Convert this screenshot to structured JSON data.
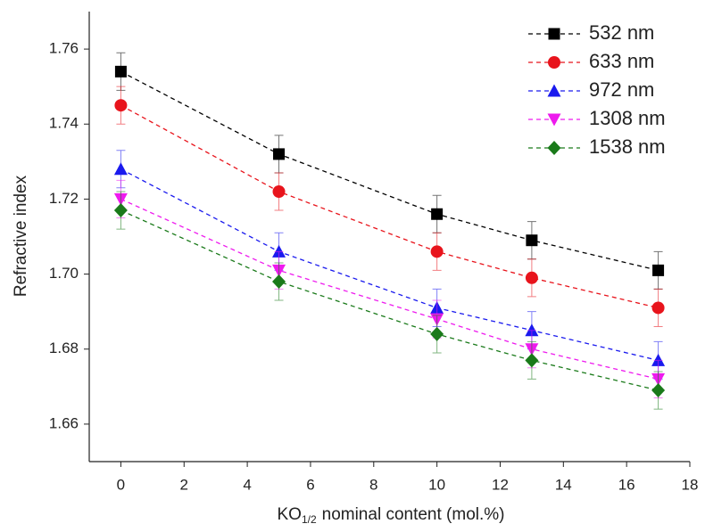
{
  "chart_data": {
    "type": "line",
    "xlabel": [
      "KO",
      "1/2",
      "nominal content (mol.%)"
    ],
    "ylabel": "Refractive index",
    "x": [
      0,
      5,
      10,
      13,
      17
    ],
    "series": [
      {
        "name": "532 nm",
        "color": "#000000",
        "marker": "square",
        "values": [
          1.754,
          1.732,
          1.716,
          1.709,
          1.701
        ],
        "errors": [
          0.005,
          0.005,
          0.005,
          0.005,
          0.005
        ]
      },
      {
        "name": "633 nm",
        "color": "#e8141c",
        "marker": "circle",
        "values": [
          1.745,
          1.722,
          1.706,
          1.699,
          1.691
        ],
        "errors": [
          0.005,
          0.005,
          0.005,
          0.005,
          0.005
        ]
      },
      {
        "name": "972 nm",
        "color": "#1a1aee",
        "marker": "triangle-up",
        "values": [
          1.728,
          1.706,
          1.691,
          1.685,
          1.677
        ],
        "errors": [
          0.005,
          0.005,
          0.005,
          0.005,
          0.005
        ]
      },
      {
        "name": "1308 nm",
        "color": "#ee1aee",
        "marker": "triangle-down",
        "values": [
          1.72,
          1.701,
          1.688,
          1.68,
          1.672
        ],
        "errors": [
          0.005,
          0.005,
          0.005,
          0.005,
          0.005
        ]
      },
      {
        "name": "1538 nm",
        "color": "#1a7a1a",
        "marker": "diamond",
        "values": [
          1.717,
          1.698,
          1.684,
          1.677,
          1.669
        ],
        "errors": [
          0.005,
          0.005,
          0.005,
          0.005,
          0.005
        ]
      }
    ],
    "xlim": [
      -1,
      18
    ],
    "xticks": [
      0,
      2,
      4,
      6,
      8,
      10,
      12,
      14,
      16,
      18
    ],
    "ylim": [
      1.65,
      1.77
    ],
    "yticks": [
      1.66,
      1.68,
      {
        "value": 1.7,
        "label": "1.70"
      },
      1.72,
      1.74,
      1.76
    ],
    "legend": "top-right",
    "line_style": "dashed"
  }
}
